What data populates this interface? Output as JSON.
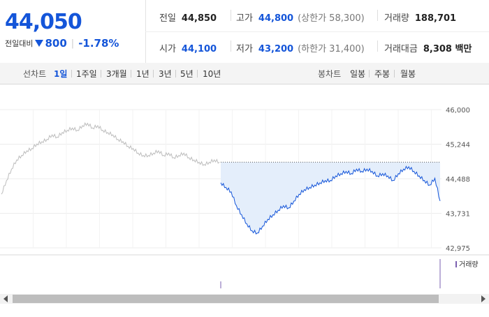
{
  "summary": {
    "price": "44,050",
    "change_label": "전일대비",
    "change_value": "800",
    "change_pct": "-1.78%",
    "stats": [
      {
        "label": "전일",
        "value": "44,850",
        "color": "black"
      },
      {
        "label": "고가",
        "value": "44,800",
        "sub": "(상한가 58,300)",
        "color": "blue"
      },
      {
        "label": "거래량",
        "value": "188,701",
        "color": "black"
      },
      {
        "label": "시가",
        "value": "44,100",
        "color": "blue"
      },
      {
        "label": "저가",
        "value": "43,200",
        "sub": "(하한가 31,400)",
        "color": "blue"
      },
      {
        "label": "거래대금",
        "value": "8,308 백만",
        "color": "black"
      }
    ]
  },
  "period_bar": {
    "line_label": "선차트",
    "line_options": [
      "1일",
      "1주일",
      "3개월",
      "1년",
      "3년",
      "5년",
      "10년"
    ],
    "selected": "1일",
    "candle_label": "봉차트",
    "candle_options": [
      "일봉",
      "주봉",
      "월봉"
    ]
  },
  "chart_data": {
    "type": "line",
    "y_ticks": [
      "46,000",
      "45,244",
      "44,488",
      "43,731",
      "42,975"
    ],
    "ylim": [
      42975,
      46000
    ],
    "reference_line": 44850,
    "series": [
      {
        "segment": "previous-day",
        "values": [
          44150,
          44450,
          44700,
          44900,
          45000,
          45100,
          45150,
          45250,
          45300,
          45350,
          45450,
          45400,
          45500,
          45550,
          45600,
          45550,
          45650,
          45700,
          45600,
          45650,
          45550,
          45500,
          45450,
          45350,
          45300,
          45200,
          45150,
          45050,
          45000,
          45000,
          45050,
          45100,
          45000,
          45050,
          44950,
          45000,
          45050,
          44950,
          44900,
          44850,
          44800,
          44850,
          44900,
          44850
        ]
      },
      {
        "segment": "today",
        "values": [
          44400,
          44300,
          44200,
          43900,
          43700,
          43500,
          43350,
          43300,
          43450,
          43600,
          43700,
          43800,
          43900,
          43850,
          44000,
          44150,
          44250,
          44300,
          44350,
          44400,
          44450,
          44450,
          44550,
          44600,
          44650,
          44600,
          44700,
          44650,
          44700,
          44650,
          44550,
          44600,
          44550,
          44450,
          44600,
          44700,
          44750,
          44650,
          44550,
          44450,
          44350,
          44500,
          44000
        ]
      }
    ],
    "volume_legend": "거래량"
  }
}
